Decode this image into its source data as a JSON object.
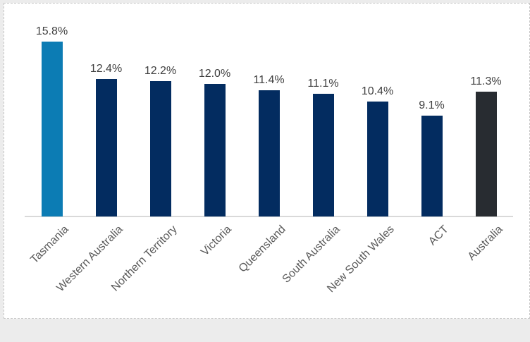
{
  "chart_data": {
    "type": "bar",
    "categories": [
      "Tasmania",
      "Western Australia",
      "Northern Territory",
      "Victoria",
      "Queensland",
      "South Australia",
      "New South Wales",
      "ACT",
      "Australia"
    ],
    "values": [
      15.8,
      12.4,
      12.2,
      12.0,
      11.4,
      11.1,
      10.4,
      9.1,
      11.3
    ],
    "value_labels": [
      "15.8%",
      "12.4%",
      "12.2%",
      "12.0%",
      "11.4%",
      "11.1%",
      "10.4%",
      "9.1%",
      "11.3%"
    ],
    "title": "",
    "xlabel": "",
    "ylabel": "",
    "ylim": [
      0,
      17
    ],
    "grid": false,
    "legend_position": "none",
    "category_label_rotation_deg": 45,
    "bar_colors": [
      "#0c7cb4",
      "#032c60",
      "#032c60",
      "#032c60",
      "#032c60",
      "#032c60",
      "#032c60",
      "#032c60",
      "#282c31"
    ],
    "colors": {
      "highlight_bar": "#0c7cb4",
      "default_bar": "#032c60",
      "national_bar": "#282c31",
      "axis_line": "#d9d9d9",
      "value_label_text": "#404040",
      "category_label_text": "#595959",
      "background": "#ffffff"
    }
  }
}
